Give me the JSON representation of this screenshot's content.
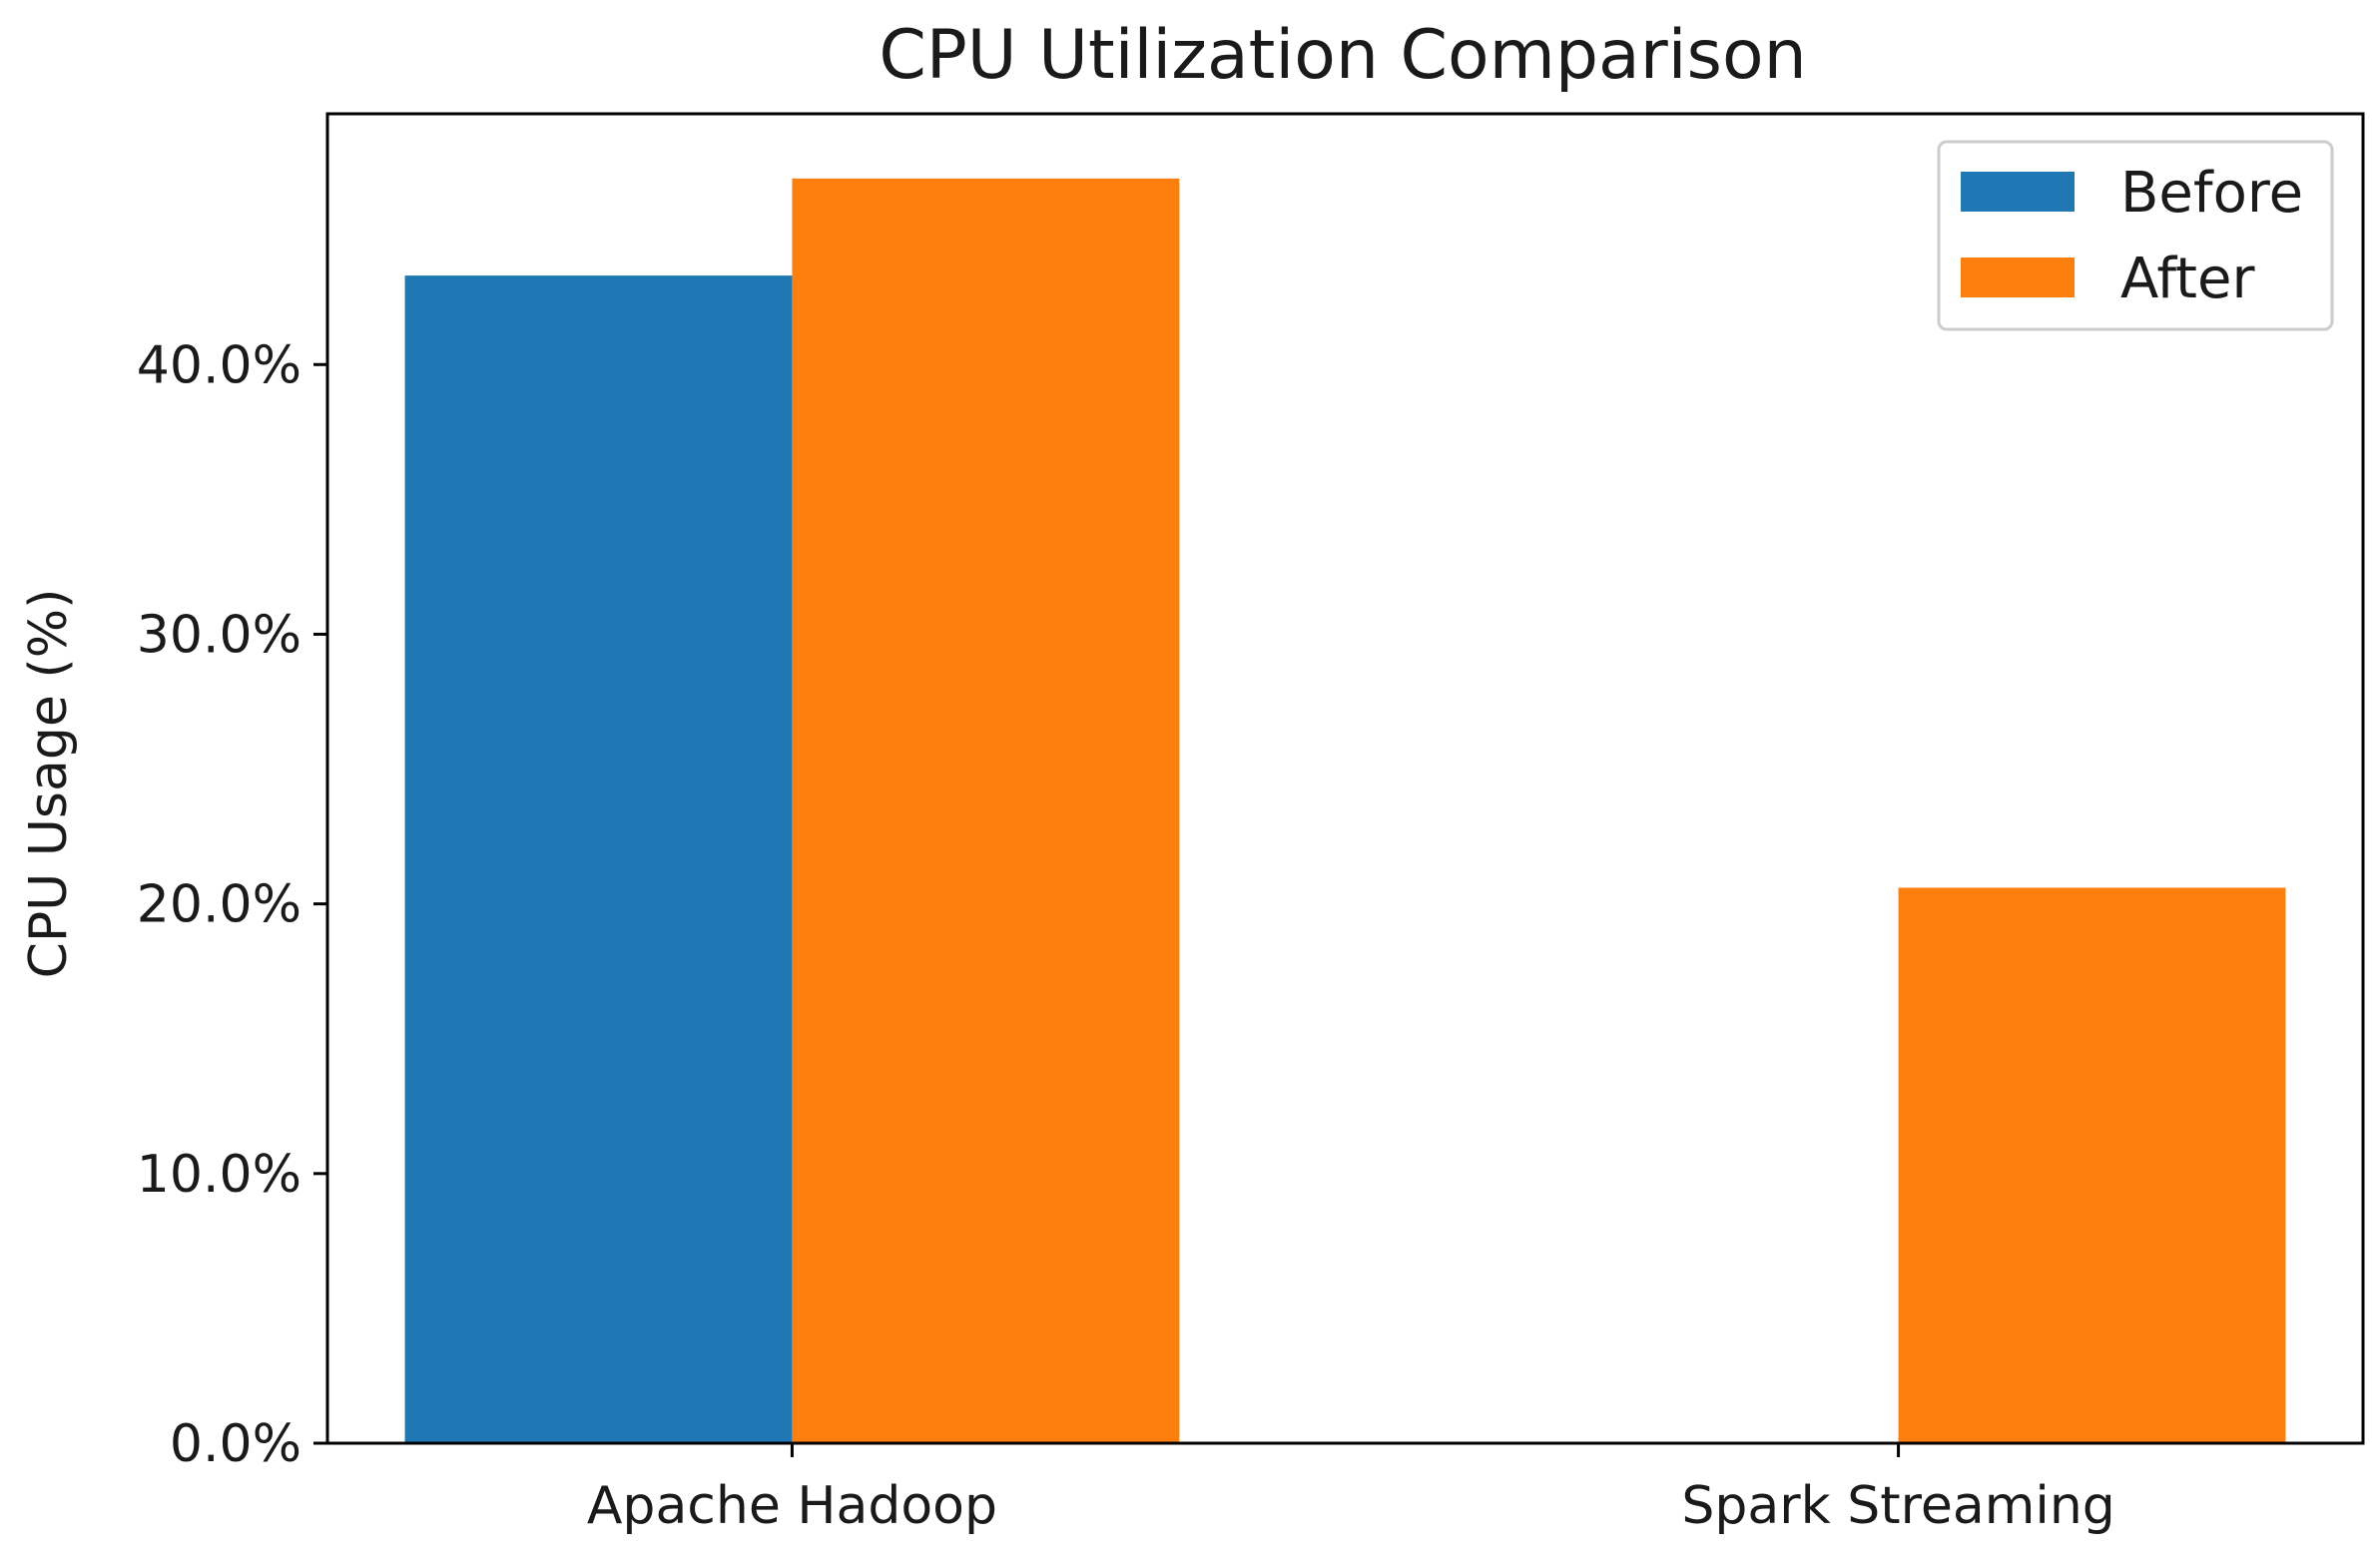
{
  "chart_data": {
    "type": "bar",
    "title": "CPU Utilization Comparison",
    "xlabel": "",
    "ylabel": "CPU Usage (%)",
    "categories": [
      "Apache Hadoop",
      "Spark Streaming"
    ],
    "series": [
      {
        "name": "Before",
        "color": "#1f77b4",
        "values": [
          43.3,
          0
        ]
      },
      {
        "name": "After",
        "color": "#ff7f0e",
        "values": [
          46.9,
          20.6
        ]
      }
    ],
    "ylim": [
      0,
      49.3
    ],
    "yticks": [
      0,
      10,
      20,
      30,
      40
    ],
    "ytick_labels": [
      "0.0%",
      "10.0%",
      "20.0%",
      "30.0%",
      "40.0%"
    ],
    "legend": {
      "position": "top-right"
    },
    "grid": false
  }
}
